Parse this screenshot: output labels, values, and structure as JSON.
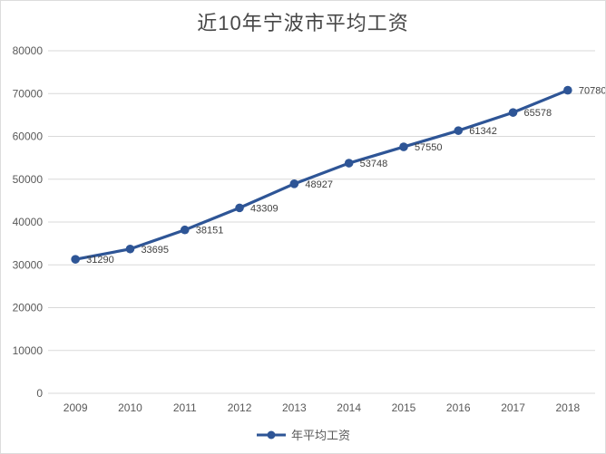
{
  "chart_data": {
    "type": "line",
    "title": "近10年宁波市平均工资",
    "categories": [
      "2009",
      "2010",
      "2011",
      "2012",
      "2013",
      "2014",
      "2015",
      "2016",
      "2017",
      "2018"
    ],
    "series": [
      {
        "name": "年平均工资",
        "values": [
          31290,
          33695,
          38151,
          43309,
          48927,
          53748,
          57550,
          61342,
          65578,
          70780
        ]
      }
    ],
    "xlabel": "",
    "ylabel": "",
    "ylim": [
      0,
      80000
    ],
    "y_ticks": [
      0,
      10000,
      20000,
      30000,
      40000,
      50000,
      60000,
      70000,
      80000
    ],
    "grid": true,
    "data_labels": "right",
    "legend_position": "bottom",
    "colors": {
      "series_line": "#2E5596",
      "title_text": "#474747",
      "axis_text": "#595959",
      "data_label_text": "#404040",
      "gridline": "#D9D9D9",
      "plot_background": "#FFFFFF"
    }
  }
}
